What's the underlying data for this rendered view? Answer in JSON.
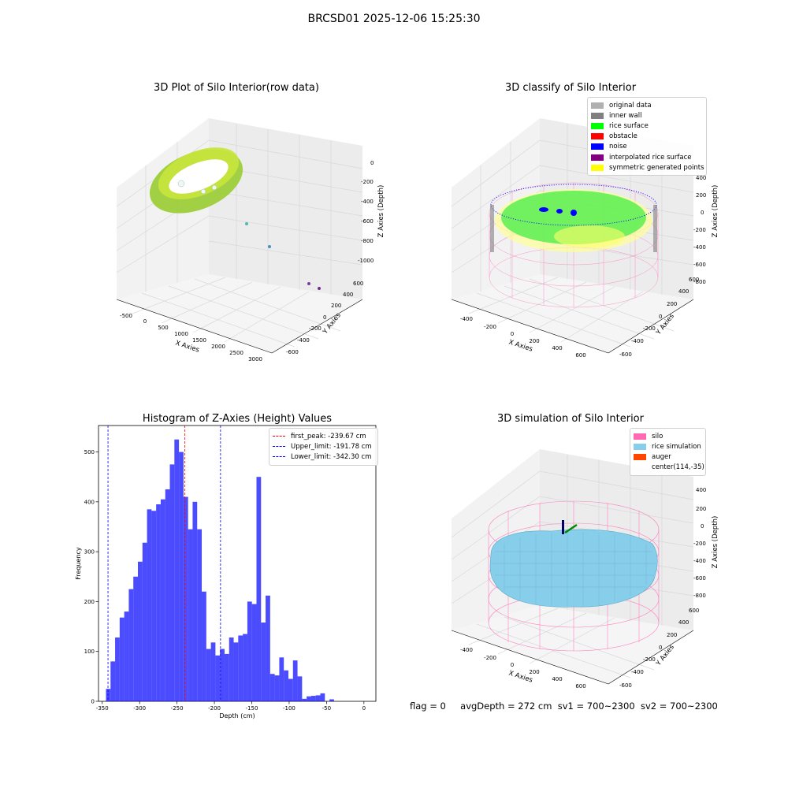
{
  "figure": {
    "suptitle": "BRCSD01 2025-12-06 15:25:30"
  },
  "panels": {
    "raw": {
      "title": "3D Plot of Silo Interior(row data)",
      "xlabel": "X Axies",
      "ylabel": "Y Axies",
      "zlabel": "Z Axies (Depth)",
      "xticks": [
        "-500",
        "0",
        "500",
        "1000",
        "1500",
        "2000",
        "2500",
        "3000"
      ],
      "yticks": [
        "600",
        "400",
        "200",
        "0",
        "-200",
        "-400",
        "-600"
      ],
      "zticks": [
        "0",
        "-200",
        "-400",
        "-600",
        "-800",
        "-1000"
      ]
    },
    "classify": {
      "title": "3D classify of Silo Interior",
      "xlabel": "X Axies",
      "ylabel": "Y Axies",
      "zlabel": "Z Axies (Depth)",
      "xticks": [
        "-400",
        "-200",
        "0",
        "200",
        "400",
        "600"
      ],
      "yticks": [
        "600",
        "400",
        "200",
        "0",
        "-200",
        "-400",
        "-600"
      ],
      "zticks": [
        "400",
        "200",
        "0",
        "-200",
        "-400",
        "-600",
        "-800"
      ],
      "legend": [
        {
          "label": "original data",
          "color": "#b0b0b0"
        },
        {
          "label": "inner wall",
          "color": "#808080"
        },
        {
          "label": "rice surface",
          "color": "#00ff00"
        },
        {
          "label": "obstacle",
          "color": "#ff0000"
        },
        {
          "label": "noise",
          "color": "#0000ff"
        },
        {
          "label": "interpolated rice surface",
          "color": "#800080"
        },
        {
          "label": "symmetric generated points",
          "color": "#ffff00"
        }
      ]
    },
    "simulation": {
      "title": "3D simulation of Silo Interior",
      "xlabel": "X Axies",
      "ylabel": "Y Axies",
      "zlabel": "Z Axies (Depth)",
      "xticks": [
        "-400",
        "-200",
        "0",
        "200",
        "400",
        "600"
      ],
      "yticks": [
        "600",
        "400",
        "200",
        "0",
        "-200",
        "-400",
        "-600"
      ],
      "zticks": [
        "400",
        "200",
        "0",
        "-200",
        "-400",
        "-600",
        "-800"
      ],
      "legend": [
        {
          "label": "silo",
          "color": "#ff69b4"
        },
        {
          "label": "rice simulation",
          "color": "#87ceeb"
        },
        {
          "label": "auger",
          "color": "#ff4500"
        },
        {
          "label": "center(114,-35)",
          "color": ""
        }
      ]
    }
  },
  "status": {
    "flag": "flag = 0",
    "avg_depth": "avgDepth = 272 cm",
    "sv1": "sv1 = 700~2300",
    "sv2": "sv2 = 700~2300"
  },
  "chart_data": {
    "type": "bar",
    "title": "Histogram of Z-Axies (Height) Values",
    "xlabel": "Depth (cm)",
    "ylabel": "Frequency",
    "xlim": [
      -355,
      16
    ],
    "ylim": [
      0,
      553
    ],
    "xticks": [
      -350,
      -300,
      -250,
      -200,
      -150,
      -100,
      -50,
      0
    ],
    "yticks": [
      0,
      100,
      200,
      300,
      400,
      500
    ],
    "bar_color": "#0000ff",
    "bin_start": -345,
    "bin_width": 6.1,
    "values": [
      25,
      80,
      128,
      168,
      180,
      225,
      250,
      280,
      318,
      385,
      382,
      395,
      405,
      425,
      475,
      525,
      500,
      410,
      345,
      400,
      345,
      220,
      105,
      118,
      92,
      105,
      95,
      128,
      118,
      132,
      135,
      200,
      195,
      450,
      158,
      212,
      55,
      52,
      88,
      62,
      45,
      82,
      50,
      5,
      10,
      11,
      12,
      16,
      0,
      4
    ],
    "vlines": [
      {
        "label": "first_peak: -239.67 cm",
        "x": -239.67,
        "color": "#ff0000"
      },
      {
        "label": "Upper_limit: -191.78 cm",
        "x": -191.78,
        "color": "#0000ff"
      },
      {
        "label": "Lower_limit: -342.30 cm",
        "x": -342.3,
        "color": "#0000ff"
      }
    ]
  }
}
